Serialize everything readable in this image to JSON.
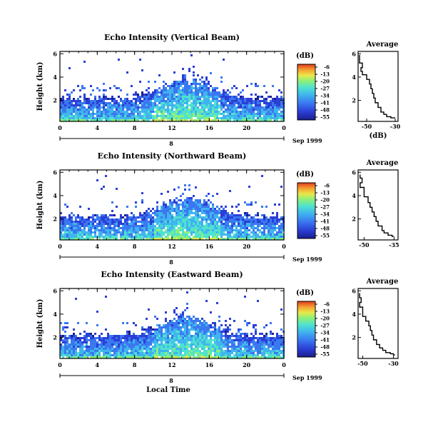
{
  "chart_data": [
    {
      "type": "heatmap",
      "title": "Echo Intensity (Vertical Beam)",
      "ylabel": "Height (km)",
      "xticks": [
        "0",
        "4",
        "8",
        "12",
        "16",
        "20",
        "0"
      ],
      "yticks": [
        "2",
        "4",
        "6"
      ],
      "xlim": [
        0,
        24
      ],
      "ylim": [
        0.2,
        6.2
      ],
      "date_marker": "8",
      "date_label": "Sep 1999",
      "colorbar": {
        "unit": "(dB)",
        "ticks": [
          "-6",
          "-13",
          "-20",
          "-27",
          "-34",
          "-41",
          "-48",
          "-55"
        ]
      },
      "profile": {
        "title": "Average",
        "xlabel": "(dB)",
        "xticks": [
          "-50",
          "-30"
        ],
        "yticks": [
          "2",
          "4",
          "6"
        ],
        "xlim": [
          -56,
          -28
        ],
        "points": [
          [
            -55,
            5.9
          ],
          [
            -55,
            5.6
          ],
          [
            -53,
            5.2
          ],
          [
            -54,
            4.8
          ],
          [
            -53,
            4.5
          ],
          [
            -50,
            4.2
          ],
          [
            -48,
            3.8
          ],
          [
            -47,
            3.4
          ],
          [
            -46,
            3.0
          ],
          [
            -45,
            2.6
          ],
          [
            -44,
            2.2
          ],
          [
            -42,
            1.8
          ],
          [
            -40,
            1.4
          ],
          [
            -38,
            1.0
          ],
          [
            -36,
            0.8
          ],
          [
            -33,
            0.6
          ],
          [
            -30,
            0.5
          ]
        ]
      }
    },
    {
      "type": "heatmap",
      "title": "Echo Intensity (Northward Beam)",
      "ylabel": "Height (km)",
      "xticks": [
        "0",
        "4",
        "8",
        "12",
        "16",
        "20",
        "0"
      ],
      "yticks": [
        "2",
        "4",
        "6"
      ],
      "xlim": [
        0,
        24
      ],
      "ylim": [
        0.2,
        6.2
      ],
      "date_marker": "8",
      "date_label": "Sep 1999",
      "colorbar": {
        "unit": "(dB)",
        "ticks": [
          "-6",
          "-13",
          "-20",
          "-27",
          "-34",
          "-41",
          "-48",
          "-55"
        ]
      },
      "profile": {
        "title": "Average",
        "xlabel": "",
        "xticks": [
          "-50",
          "-35"
        ],
        "yticks": [
          "2",
          "4",
          "6"
        ],
        "xlim": [
          -53,
          -33
        ],
        "points": [
          [
            -52,
            5.8
          ],
          [
            -51,
            5.5
          ],
          [
            -52,
            5.1
          ],
          [
            -50,
            4.7
          ],
          [
            -50,
            4.3
          ],
          [
            -48,
            3.9
          ],
          [
            -47,
            3.4
          ],
          [
            -46,
            3.0
          ],
          [
            -45,
            2.6
          ],
          [
            -44,
            2.2
          ],
          [
            -43,
            1.8
          ],
          [
            -41,
            1.4
          ],
          [
            -40,
            1.0
          ],
          [
            -38,
            0.8
          ],
          [
            -36,
            0.6
          ],
          [
            -35,
            0.5
          ]
        ]
      }
    },
    {
      "type": "heatmap",
      "title": "Echo Intensity (Eastward Beam)",
      "ylabel": "Height (km)",
      "xlabel": "Local Time",
      "xticks": [
        "0",
        "4",
        "8",
        "12",
        "16",
        "20",
        "0"
      ],
      "yticks": [
        "2",
        "4",
        "6"
      ],
      "xlim": [
        0,
        24
      ],
      "ylim": [
        0.2,
        6.2
      ],
      "date_marker": "8",
      "date_label": "Sep 1999",
      "colorbar": {
        "unit": "(dB)",
        "ticks": [
          "-6",
          "-13",
          "-20",
          "-27",
          "-34",
          "-41",
          "-48",
          "-55"
        ]
      },
      "profile": {
        "title": "Average",
        "xlabel": "",
        "xticks": [
          "-50",
          "-30"
        ],
        "yticks": [
          "2",
          "4",
          "6"
        ],
        "xlim": [
          -53,
          -27
        ],
        "points": [
          [
            -52,
            5.8
          ],
          [
            -51,
            5.4
          ],
          [
            -52,
            5.0
          ],
          [
            -50,
            4.6
          ],
          [
            -50,
            4.2
          ],
          [
            -48,
            3.8
          ],
          [
            -46,
            3.4
          ],
          [
            -45,
            3.0
          ],
          [
            -44,
            2.6
          ],
          [
            -43,
            2.2
          ],
          [
            -41,
            1.8
          ],
          [
            -39,
            1.4
          ],
          [
            -37,
            1.1
          ],
          [
            -35,
            0.9
          ],
          [
            -32,
            0.7
          ],
          [
            -30,
            0.6
          ],
          [
            -29,
            0.5
          ]
        ]
      }
    }
  ],
  "colors": {
    "colormap": [
      "#1a1f8c",
      "#2b3fd6",
      "#3a78f0",
      "#40b4ee",
      "#4fe2cf",
      "#8cf07a",
      "#e8e84a",
      "#f5a030",
      "#e03a1e"
    ]
  }
}
